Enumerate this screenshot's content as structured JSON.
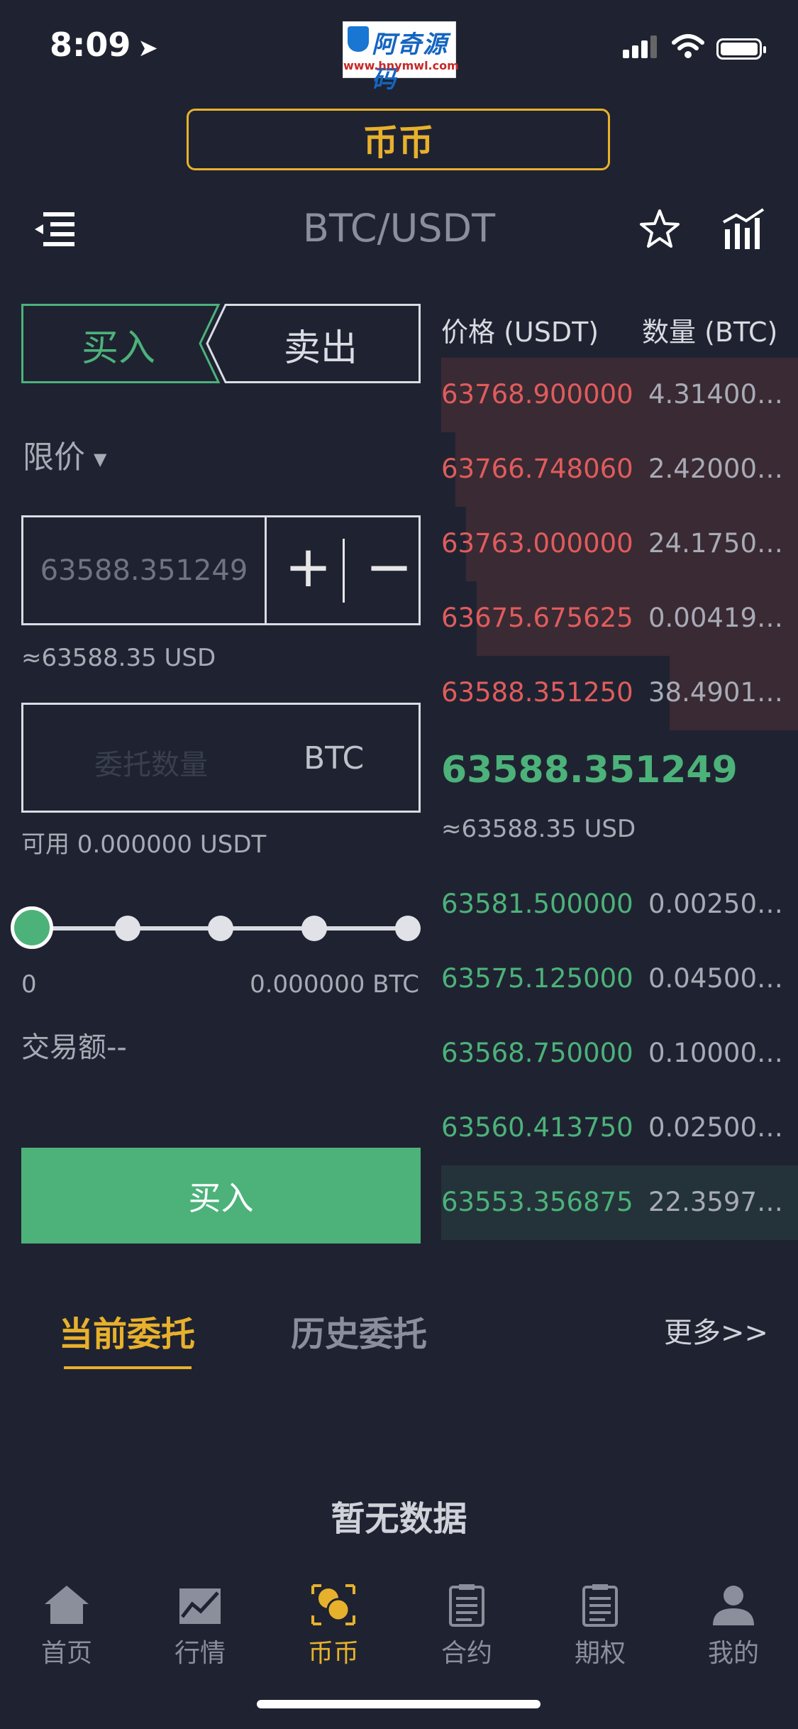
{
  "status_bar": {
    "time": "8:09"
  },
  "watermark": {
    "title": "阿奇源码",
    "url": "www.hnymwl.com"
  },
  "header": {
    "mode_tab": "币币",
    "pair": "BTC/USDT"
  },
  "trade_form": {
    "buy_tab": "买入",
    "sell_tab": "卖出",
    "order_type": "限价",
    "price_value": "63588.351249",
    "plus_label": "+",
    "minus_label": "−",
    "price_usd": "≈63588.35 USD",
    "quantity_placeholder": "委托数量",
    "quantity_unit": "BTC",
    "available": "可用 0.000000 USDT",
    "slider_min": "0",
    "slider_max": "0.000000 BTC",
    "slider_level": 0,
    "trade_amount": "交易额--",
    "submit_label": "买入"
  },
  "order_book": {
    "price_header": "价格 (USDT)",
    "qty_header": "数量 (BTC)",
    "asks": [
      {
        "price": "63768.900000",
        "qty": "4.31400…",
        "depth": 1.0
      },
      {
        "price": "63766.748060",
        "qty": "2.42000…",
        "depth": 0.96
      },
      {
        "price": "63763.000000",
        "qty": "24.1750…",
        "depth": 0.93
      },
      {
        "price": "63675.675625",
        "qty": "0.00419…",
        "depth": 0.9
      },
      {
        "price": "63588.351250",
        "qty": "38.4901…",
        "depth": 0.36
      }
    ],
    "last_price": "63588.351249",
    "last_price_usd": "≈63588.35 USD",
    "bids": [
      {
        "price": "63581.500000",
        "qty": "0.00250…",
        "depth": 0
      },
      {
        "price": "63575.125000",
        "qty": "0.04500…",
        "depth": 0
      },
      {
        "price": "63568.750000",
        "qty": "0.10000…",
        "depth": 0
      },
      {
        "price": "63560.413750",
        "qty": "0.02500…",
        "depth": 0
      },
      {
        "price": "63553.356875",
        "qty": "22.3597…",
        "depth": 1.0
      }
    ]
  },
  "entrust": {
    "tab_current": "当前委托",
    "tab_history": "历史委托",
    "more": "更多>>",
    "empty": "暂无数据"
  },
  "bottom_nav": [
    {
      "label": "首页",
      "icon": "home-icon"
    },
    {
      "label": "行情",
      "icon": "market-icon"
    },
    {
      "label": "币币",
      "icon": "coin-icon"
    },
    {
      "label": "合约",
      "icon": "contract-icon"
    },
    {
      "label": "期权",
      "icon": "option-icon"
    },
    {
      "label": "我的",
      "icon": "user-icon"
    }
  ],
  "colors": {
    "accent": "#e8b12c",
    "buy": "#4cb27a",
    "sell": "#e05c5c",
    "background": "#1f2331"
  }
}
